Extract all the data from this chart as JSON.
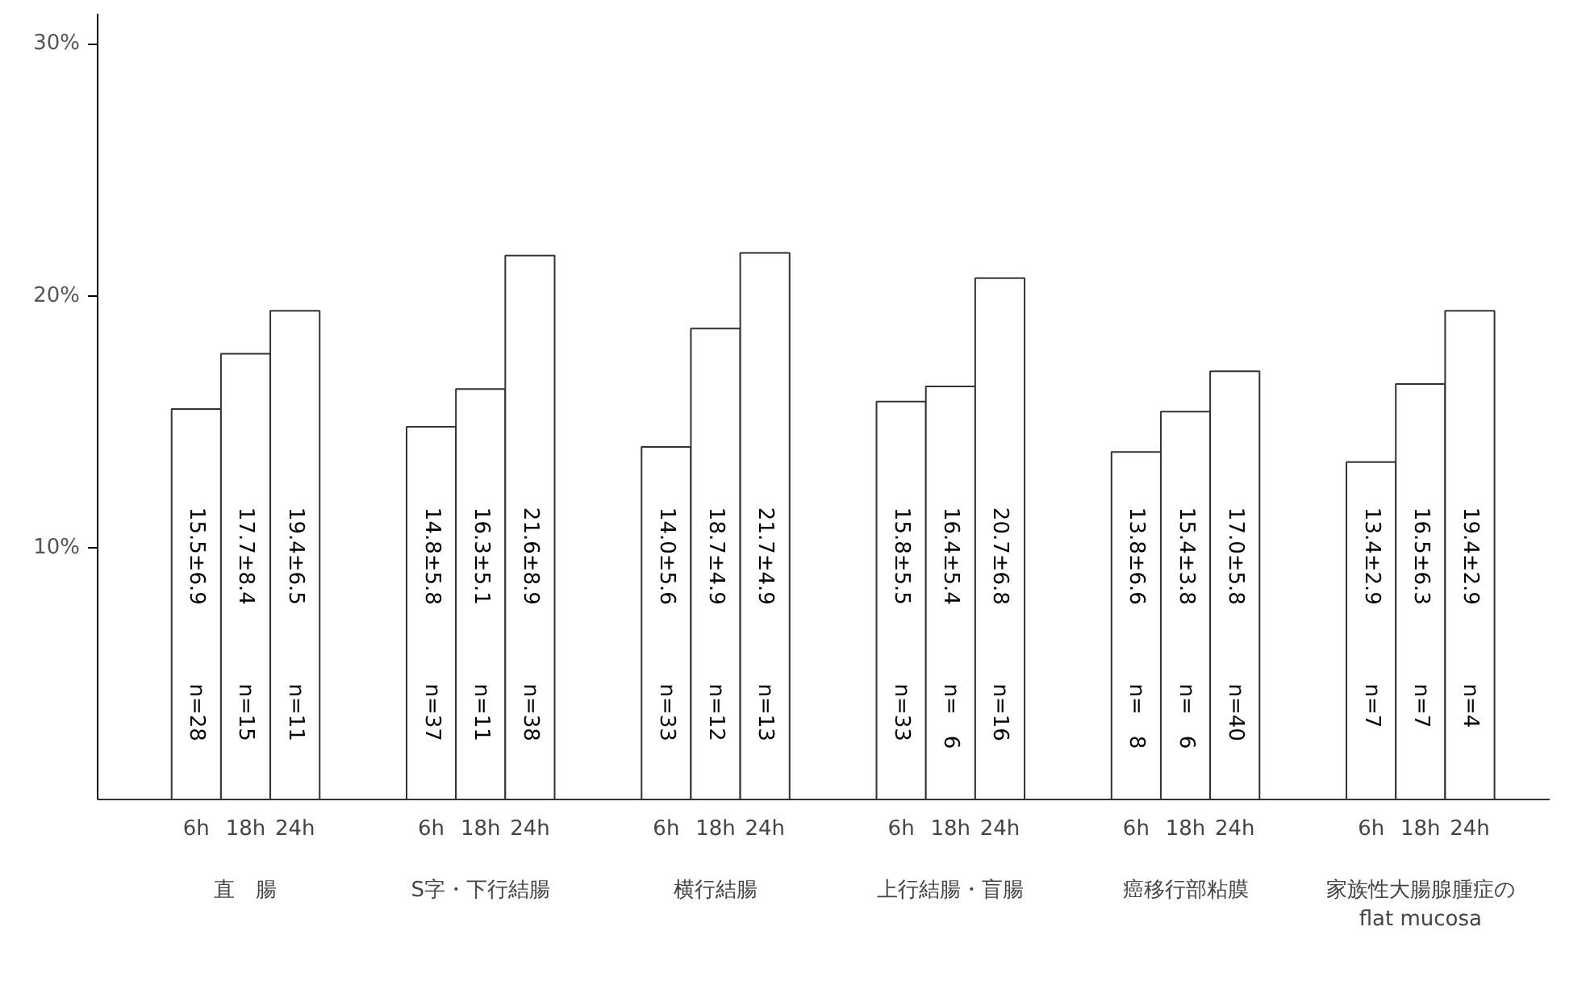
{
  "chart_data": {
    "type": "bar",
    "categories": [
      "直　腸",
      "S字・下行結腸",
      "横行結腸",
      "上行結腸・盲腸",
      "癌移行部粘膜",
      "家族性大腸腺腫症の\nflat mucosa"
    ],
    "series": [
      {
        "name": "6h",
        "color": "#ffffff",
        "values": [
          15.5,
          14.8,
          14.0,
          15.8,
          13.8,
          13.4
        ],
        "value_labels": [
          "15.5±6.9",
          "14.8±5.8",
          "14.0±5.6",
          "15.8±5.5",
          "13.8±6.6",
          "13.4±2.9"
        ]
      },
      {
        "name": "18h",
        "color": "#ffffff",
        "values": [
          17.7,
          16.3,
          18.7,
          16.4,
          15.4,
          16.5
        ],
        "value_labels": [
          "17.7±8.4",
          "16.3±5.1",
          "18.7±4.9",
          "16.4±5.4",
          "15.4±3.8",
          "16.5±6.3"
        ]
      },
      {
        "name": "24h",
        "color": "#ffffff",
        "values": [
          19.4,
          21.6,
          21.7,
          20.7,
          17.0,
          19.4
        ],
        "value_labels": [
          "19.4±6.5",
          "21.6±8.9",
          "21.7±4.9",
          "20.7±6.8",
          "17.0±5.8",
          "19.4±2.9"
        ]
      }
    ],
    "annotations": [
      "n=28",
      "n=15",
      "n=11",
      "n=37",
      "n=11",
      "n=38",
      "n=33",
      "n=12",
      "n=13",
      "n=33",
      "n=　6",
      "n=16",
      "n=　8",
      "n=　6",
      "n=40",
      "n=7",
      "n=7",
      "n=4"
    ],
    "ylim": [
      0,
      31.2
    ],
    "yticks": [
      {
        "value": 10,
        "label": "10%"
      },
      {
        "value": 20,
        "label": "20%"
      },
      {
        "value": 30,
        "label": "30%"
      }
    ],
    "grid": false
  }
}
